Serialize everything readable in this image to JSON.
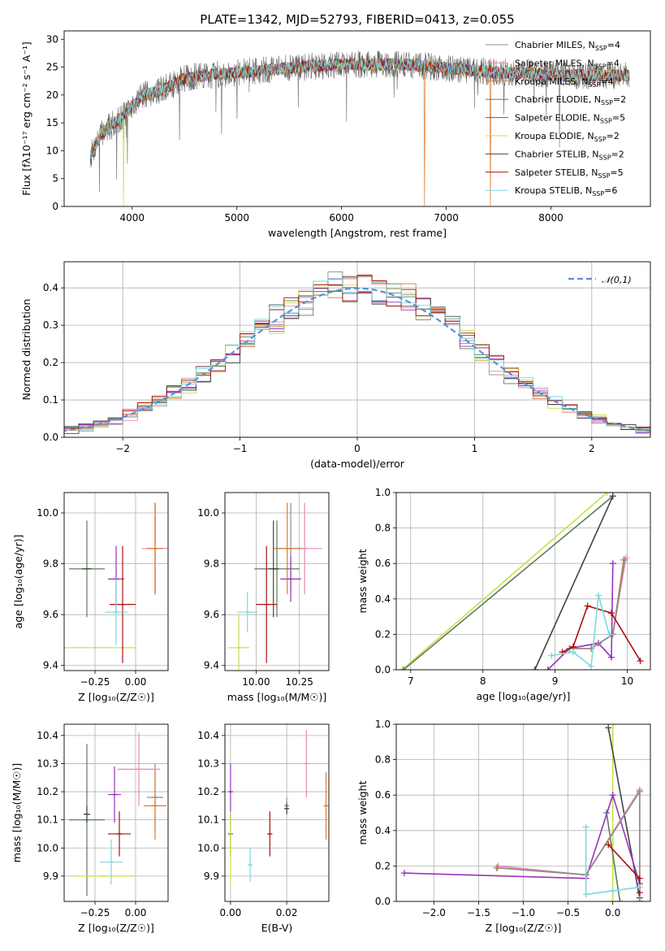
{
  "figure": {
    "title": "PLATE=1342, MJD=52793, FIBERID=0413, z=0.055"
  },
  "models": [
    {
      "name": "Chabrier MILES",
      "nssp": "4",
      "color": "#8c8c8c"
    },
    {
      "name": "Salpeter MILES",
      "nssp": "4",
      "color": "#e68ab8"
    },
    {
      "name": "Kroupa MILES",
      "nssp": "4",
      "color": "#e07a30"
    },
    {
      "name": "Chabrier ELODIE",
      "nssp": "2",
      "color": "#5a7d5a"
    },
    {
      "name": "Salpeter ELODIE",
      "nssp": "5",
      "color": "#9933bb"
    },
    {
      "name": "Kroupa ELODIE",
      "nssp": "2",
      "color": "#c8e04a"
    },
    {
      "name": "Chabrier STELIB",
      "nssp": "2",
      "color": "#444444"
    },
    {
      "name": "Salpeter STELIB",
      "nssp": "5",
      "color": "#aa1111"
    },
    {
      "name": "Kroupa STELIB",
      "nssp": "6",
      "color": "#7fd6e0"
    }
  ],
  "chart_data": [
    {
      "id": "spectrum",
      "type": "line",
      "xlabel": "wavelength [Angstrom, rest frame]",
      "ylabel": "Flux [fλ10⁻¹⁷ erg cm⁻² s⁻¹ A⁻¹]",
      "xlim": [
        3350,
        8950
      ],
      "ylim": [
        0,
        31.5
      ],
      "xticks": [
        4000,
        5000,
        6000,
        7000,
        8000
      ],
      "yticks": [
        0,
        5,
        10,
        15,
        20,
        25,
        30
      ],
      "grid": false,
      "legend": "right",
      "continuum": {
        "x": [
          3600,
          3700,
          3800,
          3900,
          4000,
          4100,
          4200,
          4300,
          4400,
          4500,
          4700,
          5000,
          5300,
          5600,
          6000,
          6300,
          6600,
          6900,
          7200,
          7500,
          7800,
          8100,
          8400,
          8700
        ],
        "y": [
          9,
          13,
          14.5,
          16,
          18,
          20,
          20.5,
          21,
          22,
          23,
          23.5,
          24,
          24.5,
          25,
          25.5,
          25.5,
          25.5,
          25,
          24.5,
          24,
          24,
          23.5,
          23.5,
          23.5
        ]
      },
      "data_range": [
        3600,
        8750
      ],
      "drops": [
        {
          "model": "Kroupa ELODIE",
          "x": 3920
        },
        {
          "model": "Kroupa MILES",
          "x": 6790
        },
        {
          "model": "Kroupa MILES",
          "x": 7420
        }
      ]
    },
    {
      "id": "residuals",
      "type": "bar",
      "xlabel": "(data-model)/error",
      "ylabel": "Normed distribution",
      "xlim": [
        -2.5,
        2.5
      ],
      "ylim": [
        0,
        0.47
      ],
      "xticks": [
        -2,
        -1,
        0,
        1,
        2
      ],
      "yticks": [
        0.0,
        0.1,
        0.2,
        0.3,
        0.4
      ],
      "grid": true,
      "legend": "top-right",
      "legend_label": "N(0,1)",
      "gaussian_color": "#5b8fd6"
    },
    {
      "id": "age-vs-Z",
      "type": "scatter",
      "xlabel": "Z [log₁₀(Z/Z☉)]",
      "ylabel": "age  [log₁₀(age/yr)]",
      "xlim": [
        -0.44,
        0.2
      ],
      "ylim": [
        9.38,
        10.08
      ],
      "xticks": [
        -0.25,
        0.0
      ],
      "yticks": [
        9.4,
        9.6,
        9.8,
        10.0
      ],
      "grid": true,
      "points": [
        {
          "model": "Chabrier MILES",
          "x": 0.12,
          "y": 9.86,
          "xerr": 0.05,
          "yerr": 0.18
        },
        {
          "model": "Salpeter MILES",
          "x": 0.12,
          "y": 9.86,
          "xerr": 0.08,
          "yerr": 0.18
        },
        {
          "model": "Kroupa MILES",
          "x": 0.12,
          "y": 9.86,
          "xerr": 0.05,
          "yerr": 0.18
        },
        {
          "model": "Chabrier ELODIE",
          "x": -0.3,
          "y": 9.78,
          "xerr": 0.11,
          "yerr": 0.19
        },
        {
          "model": "Salpeter ELODIE",
          "x": -0.12,
          "y": 9.74,
          "xerr": 0.05,
          "yerr": 0.13
        },
        {
          "model": "Kroupa ELODIE",
          "x": -0.25,
          "y": 9.47,
          "xerr": 0.25,
          "yerr": 0.0
        },
        {
          "model": "Chabrier STELIB",
          "x": -0.3,
          "y": 9.78,
          "xerr": 0.03,
          "yerr": 0.0
        },
        {
          "model": "Salpeter STELIB",
          "x": -0.08,
          "y": 9.64,
          "xerr": 0.08,
          "yerr": 0.23
        },
        {
          "model": "Kroupa STELIB",
          "x": -0.12,
          "y": 9.61,
          "xerr": 0.07,
          "yerr": 0.13
        }
      ]
    },
    {
      "id": "age-vs-mass",
      "type": "scatter",
      "xlabel": "mass [log₁₀(M/M☉)]",
      "ylabel": "",
      "xlim": [
        9.82,
        10.42
      ],
      "ylim": [
        9.38,
        10.08
      ],
      "xticks": [
        10.0,
        10.25
      ],
      "yticks": [
        9.4,
        9.6,
        9.8,
        10.0
      ],
      "grid": true,
      "points": [
        {
          "model": "Chabrier MILES",
          "x": 10.2,
          "y": 9.86,
          "xerr": 0.08,
          "yerr": 0.18
        },
        {
          "model": "Salpeter MILES",
          "x": 10.28,
          "y": 9.86,
          "xerr": 0.1,
          "yerr": 0.18
        },
        {
          "model": "Kroupa MILES",
          "x": 10.18,
          "y": 9.86,
          "xerr": 0.08,
          "yerr": 0.18
        },
        {
          "model": "Chabrier ELODIE",
          "x": 10.12,
          "y": 9.78,
          "xerr": 0.13,
          "yerr": 0.19
        },
        {
          "model": "Salpeter ELODIE",
          "x": 10.2,
          "y": 9.74,
          "xerr": 0.06,
          "yerr": 0.09
        },
        {
          "model": "Kroupa ELODIE",
          "x": 9.9,
          "y": 9.47,
          "xerr": 0.06,
          "yerr": 0.13
        },
        {
          "model": "Chabrier STELIB",
          "x": 10.1,
          "y": 9.78,
          "xerr": 0.03,
          "yerr": 0.19
        },
        {
          "model": "Salpeter STELIB",
          "x": 10.06,
          "y": 9.64,
          "xerr": 0.06,
          "yerr": 0.23
        },
        {
          "model": "Kroupa STELIB",
          "x": 9.95,
          "y": 9.61,
          "xerr": 0.06,
          "yerr": 0.08
        }
      ]
    },
    {
      "id": "mass-weight-vs-age",
      "type": "line",
      "xlabel": "age  [log₁₀(age/yr)]",
      "ylabel": "mass weight",
      "xlim": [
        6.8,
        10.32
      ],
      "ylim": [
        0,
        1
      ],
      "xticks": [
        7,
        8,
        9,
        10
      ],
      "yticks": [
        0.0,
        0.2,
        0.4,
        0.6,
        0.8,
        1.0
      ],
      "grid": true,
      "series": [
        {
          "model": "Kroupa ELODIE",
          "x": [
            6.88,
            9.72
          ],
          "y": [
            0.0,
            1.0
          ]
        },
        {
          "model": "Chabrier ELODIE",
          "x": [
            6.9,
            9.8
          ],
          "y": [
            0.0,
            0.98
          ]
        },
        {
          "model": "Chabrier STELIB",
          "x": [
            8.72,
            9.8
          ],
          "y": [
            0.0,
            0.98
          ]
        },
        {
          "model": "Salpeter ELODIE",
          "x": [
            8.9,
            9.2,
            9.6,
            9.78,
            9.8
          ],
          "y": [
            0.0,
            0.12,
            0.15,
            0.07,
            0.6
          ]
        },
        {
          "model": "Kroupa MILES",
          "x": [
            9.2,
            9.5,
            9.8,
            9.95
          ],
          "y": [
            0.12,
            0.12,
            0.2,
            0.62
          ]
        },
        {
          "model": "Salpeter MILES",
          "x": [
            9.2,
            9.5,
            9.8,
            9.98
          ],
          "y": [
            0.12,
            0.12,
            0.2,
            0.63
          ]
        },
        {
          "model": "Chabrier MILES",
          "x": [
            9.2,
            9.5,
            9.8,
            9.96
          ],
          "y": [
            0.12,
            0.12,
            0.2,
            0.62
          ]
        },
        {
          "model": "Salpeter STELIB",
          "x": [
            9.1,
            9.25,
            9.45,
            9.78,
            10.18
          ],
          "y": [
            0.1,
            0.13,
            0.36,
            0.32,
            0.05
          ]
        },
        {
          "model": "Kroupa STELIB",
          "x": [
            8.95,
            9.25,
            9.5,
            9.6,
            9.75
          ],
          "y": [
            0.08,
            0.1,
            0.02,
            0.42,
            0.2
          ]
        }
      ]
    },
    {
      "id": "mass-vs-Z",
      "type": "scatter",
      "xlabel": "Z [log₁₀(Z/Z☉)]",
      "ylabel": "mass [log₁₀(M/M☉)]",
      "xlim": [
        -0.44,
        0.2
      ],
      "ylim": [
        9.81,
        10.44
      ],
      "xticks": [
        -0.25,
        0.0
      ],
      "yticks": [
        9.9,
        10.0,
        10.1,
        10.2,
        10.3,
        10.4
      ],
      "grid": true,
      "points": [
        {
          "model": "Chabrier MILES",
          "x": 0.12,
          "y": 10.18,
          "xerr": 0.05,
          "yerr": 0.12
        },
        {
          "model": "Salpeter MILES",
          "x": 0.02,
          "y": 10.28,
          "xerr": 0.13,
          "yerr": 0.13
        },
        {
          "model": "Kroupa MILES",
          "x": 0.12,
          "y": 10.15,
          "xerr": 0.07,
          "yerr": 0.12
        },
        {
          "model": "Chabrier ELODIE",
          "x": -0.3,
          "y": 10.1,
          "xerr": 0.11,
          "yerr": 0.27
        },
        {
          "model": "Salpeter ELODIE",
          "x": -0.13,
          "y": 10.19,
          "xerr": 0.04,
          "yerr": 0.1
        },
        {
          "model": "Kroupa ELODIE",
          "x": -0.2,
          "y": 9.9,
          "xerr": 0.2,
          "yerr": 0.0
        },
        {
          "model": "Chabrier STELIB",
          "x": -0.3,
          "y": 10.12,
          "xerr": 0.02,
          "yerr": 0.03
        },
        {
          "model": "Salpeter STELIB",
          "x": -0.1,
          "y": 10.05,
          "xerr": 0.07,
          "yerr": 0.08
        },
        {
          "model": "Kroupa STELIB",
          "x": -0.15,
          "y": 9.95,
          "xerr": 0.07,
          "yerr": 0.08
        }
      ]
    },
    {
      "id": "mass-vs-EBV",
      "type": "scatter",
      "xlabel": "E(B-V)",
      "ylabel": "",
      "xlim": [
        -0.002,
        0.035
      ],
      "ylim": [
        9.81,
        10.44
      ],
      "xticks": [
        0.0,
        0.02
      ],
      "yticks": [
        9.9,
        10.0,
        10.1,
        10.2,
        10.3,
        10.4
      ],
      "grid": true,
      "points": [
        {
          "model": "Chabrier MILES",
          "x": 0.02,
          "y": 10.15,
          "xerr": 0.0,
          "yerr": 0.03
        },
        {
          "model": "Salpeter MILES",
          "x": 0.027,
          "y": 10.3,
          "xerr": 0.0,
          "yerr": 0.12
        },
        {
          "model": "Kroupa MILES",
          "x": 0.034,
          "y": 10.15,
          "xerr": 0.0,
          "yerr": 0.12
        },
        {
          "model": "Chabrier ELODIE",
          "x": 0.0,
          "y": 10.05,
          "xerr": 0.0,
          "yerr": 0.08
        },
        {
          "model": "Salpeter ELODIE",
          "x": 0.0,
          "y": 10.2,
          "xerr": 0.0,
          "yerr": 0.1
        },
        {
          "model": "Kroupa ELODIE",
          "x": 0.0,
          "y": 10.0,
          "xerr": 0.0,
          "yerr": 0.13
        },
        {
          "model": "Chabrier STELIB",
          "x": 0.02,
          "y": 10.14,
          "xerr": 0.0,
          "yerr": 0.02
        },
        {
          "model": "Salpeter STELIB",
          "x": 0.014,
          "y": 10.05,
          "xerr": 0.0,
          "yerr": 0.08
        },
        {
          "model": "Kroupa STELIB",
          "x": 0.007,
          "y": 9.94,
          "xerr": 0.0,
          "yerr": 0.06
        }
      ]
    },
    {
      "id": "mass-weight-vs-Z",
      "type": "line",
      "xlabel": "Z [log₁₀(Z/Z☉)]",
      "ylabel": "mass weight",
      "xlim": [
        -2.42,
        0.42
      ],
      "ylim": [
        0,
        1
      ],
      "xticks": [
        -2.0,
        -1.5,
        -1.0,
        -0.5,
        0.0
      ],
      "yticks": [
        0.0,
        0.2,
        0.4,
        0.6,
        0.8,
        1.0
      ],
      "grid": true,
      "series": [
        {
          "model": "Kroupa ELODIE",
          "x": [
            0.0,
            0.0
          ],
          "y": [
            0.0,
            1.0
          ]
        },
        {
          "model": "Chabrier STELIB",
          "x": [
            -0.05,
            0.3
          ],
          "y": [
            0.98,
            0.02
          ]
        },
        {
          "model": "Chabrier ELODIE",
          "x": [
            -0.07,
            0.08
          ],
          "y": [
            0.5,
            0.0
          ]
        },
        {
          "model": "Salpeter ELODIE",
          "x": [
            -2.33,
            -0.3,
            0.0,
            0.3
          ],
          "y": [
            0.16,
            0.13,
            0.6,
            0.1
          ]
        },
        {
          "model": "Kroupa MILES",
          "x": [
            -1.3,
            -0.3,
            0.3,
            0.3
          ],
          "y": [
            0.19,
            0.15,
            0.62,
            0.0
          ]
        },
        {
          "model": "Salpeter MILES",
          "x": [
            -1.28,
            -0.3,
            0.3,
            0.3
          ],
          "y": [
            0.2,
            0.15,
            0.63,
            0.0
          ]
        },
        {
          "model": "Chabrier MILES",
          "x": [
            -1.29,
            -0.3,
            0.3,
            0.3
          ],
          "y": [
            0.19,
            0.15,
            0.62,
            0.0
          ]
        },
        {
          "model": "Salpeter STELIB",
          "x": [
            -0.05,
            0.3,
            0.3
          ],
          "y": [
            0.32,
            0.13,
            0.05
          ]
        },
        {
          "model": "Kroupa STELIB",
          "x": [
            -0.3,
            -0.3,
            0.0,
            0.3
          ],
          "y": [
            0.42,
            0.04,
            0.06,
            0.08
          ]
        }
      ]
    }
  ]
}
